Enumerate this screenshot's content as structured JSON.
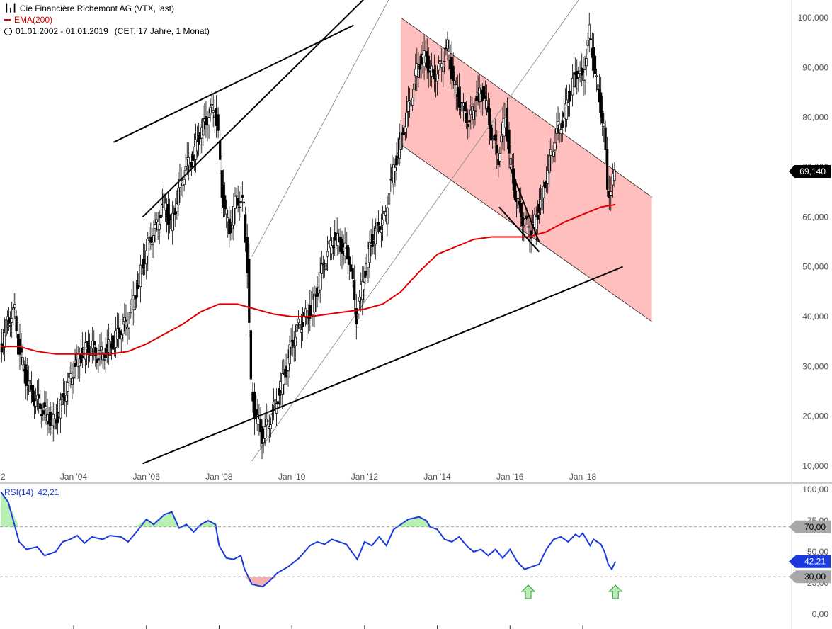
{
  "legend": {
    "instrument": "Cie Financière Richemont AG (VTX, last)",
    "ema_label": "EMA(200)",
    "period": "01.01.2002 - 01.01.2019",
    "period_detail": "(CET, 17 Jahre, 1 Monat)"
  },
  "rsi_legend": {
    "label": "RSI(14)",
    "value": "42,21"
  },
  "colors": {
    "ema": "#e00000",
    "rsi": "#1a3adf",
    "channel_fill": "#ffbcbc",
    "rsi_overbought_fill": "#b7f0b0",
    "rsi_oversold_fill": "#f2b0b0",
    "arrow_fill": "#b9ecb7",
    "arrow_stroke": "#2f9a3a"
  },
  "chart_data": [
    {
      "type": "candlestick",
      "x_axis": {
        "ticks": [
          "2",
          "Jan '04",
          "Jan '06",
          "Jan '08",
          "Jan '10",
          "Jan '12",
          "Jan '14",
          "Jan '16",
          "Jan '18"
        ],
        "tick_years": [
          2002,
          2004,
          2006,
          2008,
          2010,
          2012,
          2014,
          2016,
          2018
        ],
        "range": [
          2002.0,
          2019.1
        ]
      },
      "y_axis": {
        "ticks": [
          "10,000",
          "20,000",
          "30,000",
          "40,000",
          "50,000",
          "60,000",
          "70,000",
          "80,000",
          "90,000",
          "100,000"
        ],
        "tick_values": [
          10,
          20,
          30,
          40,
          50,
          60,
          70,
          80,
          90,
          100
        ],
        "range": [
          7,
          104
        ]
      },
      "last_price_label": "69,140",
      "last_price": 69.14,
      "close_series": [
        [
          2002.0,
          33
        ],
        [
          2002.2,
          39
        ],
        [
          2002.4,
          41
        ],
        [
          2002.5,
          34
        ],
        [
          2002.7,
          28
        ],
        [
          2002.9,
          24
        ],
        [
          2003.1,
          22
        ],
        [
          2003.3,
          20
        ],
        [
          2003.5,
          18.5
        ],
        [
          2003.7,
          23
        ],
        [
          2003.9,
          27
        ],
        [
          2004.1,
          31
        ],
        [
          2004.3,
          33
        ],
        [
          2004.5,
          34
        ],
        [
          2004.7,
          32
        ],
        [
          2004.9,
          33
        ],
        [
          2005.1,
          35
        ],
        [
          2005.3,
          37
        ],
        [
          2005.5,
          39
        ],
        [
          2005.7,
          44
        ],
        [
          2005.9,
          50
        ],
        [
          2006.1,
          55
        ],
        [
          2006.3,
          58
        ],
        [
          2006.5,
          63
        ],
        [
          2006.7,
          58
        ],
        [
          2006.9,
          65
        ],
        [
          2007.1,
          70
        ],
        [
          2007.3,
          72
        ],
        [
          2007.5,
          77
        ],
        [
          2007.7,
          80
        ],
        [
          2007.9,
          82
        ],
        [
          2008.0,
          76
        ],
        [
          2008.1,
          65
        ],
        [
          2008.3,
          57
        ],
        [
          2008.5,
          64
        ],
        [
          2008.7,
          62
        ],
        [
          2008.8,
          50
        ],
        [
          2008.9,
          26
        ],
        [
          2009.0,
          21
        ],
        [
          2009.2,
          16
        ],
        [
          2009.4,
          19
        ],
        [
          2009.6,
          23
        ],
        [
          2009.8,
          28
        ],
        [
          2010.0,
          34
        ],
        [
          2010.2,
          38
        ],
        [
          2010.4,
          40
        ],
        [
          2010.6,
          42
        ],
        [
          2010.8,
          48
        ],
        [
          2011.0,
          53
        ],
        [
          2011.2,
          56
        ],
        [
          2011.4,
          54
        ],
        [
          2011.6,
          52
        ],
        [
          2011.7,
          46
        ],
        [
          2011.8,
          40
        ],
        [
          2012.0,
          48
        ],
        [
          2012.2,
          55
        ],
        [
          2012.4,
          58
        ],
        [
          2012.6,
          60
        ],
        [
          2012.7,
          66
        ],
        [
          2012.9,
          72
        ],
        [
          2013.1,
          78
        ],
        [
          2013.3,
          84
        ],
        [
          2013.5,
          91
        ],
        [
          2013.7,
          92
        ],
        [
          2013.9,
          88
        ],
        [
          2014.1,
          90
        ],
        [
          2014.3,
          94
        ],
        [
          2014.5,
          86
        ],
        [
          2014.7,
          82
        ],
        [
          2014.9,
          79
        ],
        [
          2015.1,
          84
        ],
        [
          2015.3,
          85
        ],
        [
          2015.5,
          77
        ],
        [
          2015.7,
          72
        ],
        [
          2015.9,
          81
        ],
        [
          2016.0,
          72
        ],
        [
          2016.2,
          63
        ],
        [
          2016.4,
          59
        ],
        [
          2016.6,
          57
        ],
        [
          2016.7,
          59
        ],
        [
          2016.9,
          64
        ],
        [
          2017.1,
          71
        ],
        [
          2017.3,
          77
        ],
        [
          2017.5,
          80
        ],
        [
          2017.7,
          86
        ],
        [
          2017.9,
          90
        ],
        [
          2018.0,
          87
        ],
        [
          2018.2,
          97
        ],
        [
          2018.4,
          87
        ],
        [
          2018.6,
          78
        ],
        [
          2018.7,
          66
        ],
        [
          2018.8,
          65
        ],
        [
          2018.9,
          69.14
        ]
      ],
      "ema200_series": [
        [
          2002.0,
          34
        ],
        [
          2002.5,
          34
        ],
        [
          2003.0,
          33
        ],
        [
          2003.5,
          32.5
        ],
        [
          2004.0,
          32.5
        ],
        [
          2004.5,
          32.5
        ],
        [
          2005.0,
          32.5
        ],
        [
          2005.5,
          33
        ],
        [
          2006.0,
          34.5
        ],
        [
          2006.5,
          36.5
        ],
        [
          2007.0,
          38.5
        ],
        [
          2007.5,
          41
        ],
        [
          2008.0,
          42.5
        ],
        [
          2008.5,
          42.5
        ],
        [
          2009.0,
          41.5
        ],
        [
          2009.5,
          40.5
        ],
        [
          2010.0,
          40
        ],
        [
          2010.5,
          40
        ],
        [
          2011.0,
          40.5
        ],
        [
          2011.5,
          41
        ],
        [
          2012.0,
          41.5
        ],
        [
          2012.5,
          42.5
        ],
        [
          2013.0,
          45
        ],
        [
          2013.5,
          49
        ],
        [
          2014.0,
          52.5
        ],
        [
          2014.5,
          54
        ],
        [
          2015.0,
          55.5
        ],
        [
          2015.5,
          56
        ],
        [
          2016.0,
          56
        ],
        [
          2016.5,
          56
        ],
        [
          2017.0,
          57
        ],
        [
          2017.5,
          59
        ],
        [
          2018.0,
          60.5
        ],
        [
          2018.5,
          62
        ],
        [
          2018.9,
          62.5
        ]
      ],
      "annotations": {
        "upper_channel_line": [
          [
            2005.1,
            75
          ],
          [
            2011.7,
            98.5
          ]
        ],
        "upper_channel_line_2": [
          [
            2005.9,
            60
          ],
          [
            2013.9,
            117.5
          ]
        ],
        "lower_channel_line": [
          [
            2005.9,
            10.5
          ],
          [
            2019.1,
            50
          ]
        ],
        "thin_parallel_1": [
          [
            2008.9,
            52
          ],
          [
            2014.3,
            126
          ]
        ],
        "thin_parallel_2": [
          [
            2008.9,
            11
          ],
          [
            2018.9,
            114
          ]
        ],
        "down_channel_top": [
          [
            2013.0,
            100
          ],
          [
            2019.9,
            64
          ]
        ],
        "down_channel_bottom": [
          [
            2013.0,
            74.5
          ],
          [
            2019.9,
            39
          ]
        ],
        "wedge_line_1": [
          [
            2016.0,
            70
          ],
          [
            2016.8,
            55
          ]
        ],
        "wedge_line_2": [
          [
            2015.7,
            62
          ],
          [
            2016.8,
            53
          ]
        ]
      }
    },
    {
      "type": "line",
      "name": "RSI(14)",
      "y_axis": {
        "ticks": [
          "0,00",
          "25,00",
          "50,00",
          "75,00",
          "100,00"
        ],
        "tick_values": [
          0,
          25,
          50,
          75,
          100
        ],
        "range": [
          0,
          100
        ]
      },
      "levels": [
        {
          "label": "70,00",
          "value": 70
        },
        {
          "label": "30,00",
          "value": 30
        }
      ],
      "current_label": "42,21",
      "current": 42.21,
      "series": [
        [
          2002.0,
          98
        ],
        [
          2002.2,
          90
        ],
        [
          2002.5,
          58
        ],
        [
          2002.7,
          52
        ],
        [
          2003.0,
          54
        ],
        [
          2003.2,
          47
        ],
        [
          2003.5,
          50
        ],
        [
          2003.7,
          58
        ],
        [
          2003.9,
          60
        ],
        [
          2004.1,
          63
        ],
        [
          2004.3,
          57
        ],
        [
          2004.5,
          62
        ],
        [
          2004.8,
          60
        ],
        [
          2005.0,
          63
        ],
        [
          2005.3,
          62
        ],
        [
          2005.5,
          58
        ],
        [
          2005.7,
          65
        ],
        [
          2006.0,
          76
        ],
        [
          2006.2,
          72
        ],
        [
          2006.5,
          80
        ],
        [
          2006.7,
          82
        ],
        [
          2006.9,
          69
        ],
        [
          2007.1,
          72
        ],
        [
          2007.3,
          66
        ],
        [
          2007.5,
          72
        ],
        [
          2007.7,
          75
        ],
        [
          2007.9,
          72
        ],
        [
          2008.0,
          55
        ],
        [
          2008.2,
          45
        ],
        [
          2008.4,
          44
        ],
        [
          2008.6,
          47
        ],
        [
          2008.7,
          36
        ],
        [
          2008.9,
          24
        ],
        [
          2009.2,
          22
        ],
        [
          2009.4,
          27
        ],
        [
          2009.6,
          33
        ],
        [
          2009.9,
          38
        ],
        [
          2010.2,
          45
        ],
        [
          2010.5,
          55
        ],
        [
          2010.7,
          58
        ],
        [
          2010.9,
          56
        ],
        [
          2011.1,
          60
        ],
        [
          2011.3,
          58
        ],
        [
          2011.5,
          56
        ],
        [
          2011.6,
          52
        ],
        [
          2011.8,
          44
        ],
        [
          2012.0,
          58
        ],
        [
          2012.2,
          55
        ],
        [
          2012.4,
          62
        ],
        [
          2012.6,
          55
        ],
        [
          2012.8,
          68
        ],
        [
          2013.0,
          72
        ],
        [
          2013.2,
          76
        ],
        [
          2013.5,
          78
        ],
        [
          2013.7,
          75
        ],
        [
          2013.8,
          70
        ],
        [
          2014.0,
          68
        ],
        [
          2014.2,
          60
        ],
        [
          2014.4,
          58
        ],
        [
          2014.6,
          62
        ],
        [
          2014.8,
          55
        ],
        [
          2015.0,
          50
        ],
        [
          2015.2,
          52
        ],
        [
          2015.4,
          47
        ],
        [
          2015.6,
          52
        ],
        [
          2015.8,
          45
        ],
        [
          2016.0,
          52
        ],
        [
          2016.2,
          42
        ],
        [
          2016.4,
          36
        ],
        [
          2016.6,
          38
        ],
        [
          2016.8,
          40
        ],
        [
          2017.0,
          52
        ],
        [
          2017.2,
          60
        ],
        [
          2017.4,
          62
        ],
        [
          2017.6,
          58
        ],
        [
          2017.8,
          64
        ],
        [
          2017.9,
          62
        ],
        [
          2018.0,
          65
        ],
        [
          2018.2,
          55
        ],
        [
          2018.3,
          60
        ],
        [
          2018.5,
          56
        ],
        [
          2018.6,
          50
        ],
        [
          2018.7,
          40
        ],
        [
          2018.8,
          36
        ],
        [
          2018.9,
          42.21
        ]
      ],
      "signal_arrows": [
        2016.5,
        2018.9
      ]
    }
  ]
}
